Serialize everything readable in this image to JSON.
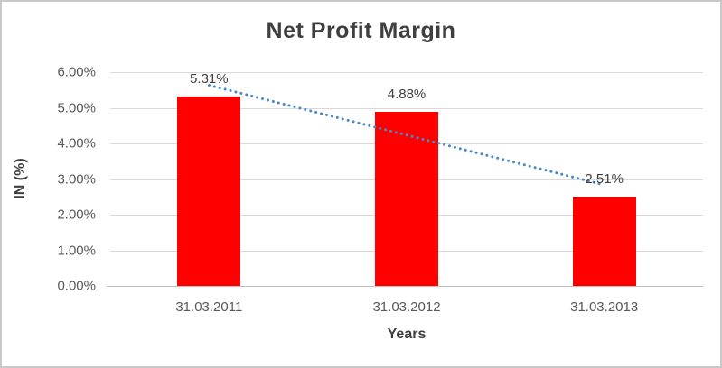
{
  "chart_data": {
    "type": "bar",
    "title": "Net Profit Margin",
    "xlabel": "Years",
    "ylabel": "IN (%)",
    "categories": [
      "31.03.2011",
      "31.03.2012",
      "31.03.2013"
    ],
    "values": [
      5.31,
      4.88,
      2.51
    ],
    "data_labels": [
      "5.31%",
      "4.88%",
      "2.51%"
    ],
    "y_ticks": [
      "6.00%",
      "5.00%",
      "4.00%",
      "3.00%",
      "2.00%",
      "1.00%",
      "0.00%"
    ],
    "ylim": [
      0,
      6
    ],
    "y_tick_step": 1,
    "grid": true,
    "legend": "none",
    "bar_color": "#ff0000",
    "trendline": {
      "type": "linear",
      "style": "dotted",
      "color": "#4a89c8"
    },
    "colors": {
      "gridline": "#d9d9d9",
      "axis_line": "#bfbfbf",
      "title_text": "#3f3f3f",
      "tick_text": "#595959",
      "label_text": "#404040",
      "frame_border": "#c9c9c9"
    }
  }
}
